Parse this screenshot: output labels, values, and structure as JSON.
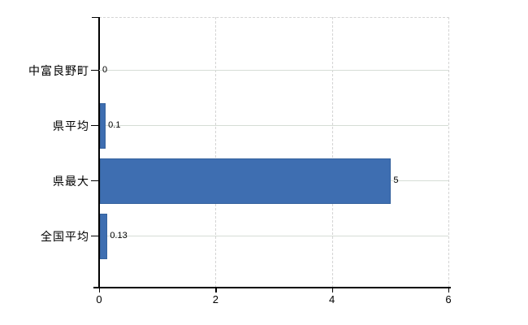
{
  "chart_data": {
    "type": "bar",
    "orientation": "horizontal",
    "title": "",
    "xlabel": "",
    "ylabel": "",
    "categories": [
      "中富良野町",
      "県平均",
      "県最大",
      "全国平均"
    ],
    "values": [
      0,
      0.1,
      5,
      0.13
    ],
    "value_labels": [
      "0",
      "0.1",
      "5",
      "0.13"
    ],
    "xlim": [
      0,
      6
    ],
    "xticks": [
      0,
      2,
      4,
      6
    ],
    "grid": "vertical dashed gridlines at ticks; light horizontal line from each bar end to right plot edge; dashed top and right plot borders",
    "legend": "none",
    "colors": {
      "bar_fill": "#3e6eb1",
      "bar_border": "#36639e",
      "axis": "#000000",
      "grid_dashed": "#d4d4d4",
      "row_line": "#d6ddd6",
      "text": "#000000",
      "background": "#ffffff"
    }
  }
}
